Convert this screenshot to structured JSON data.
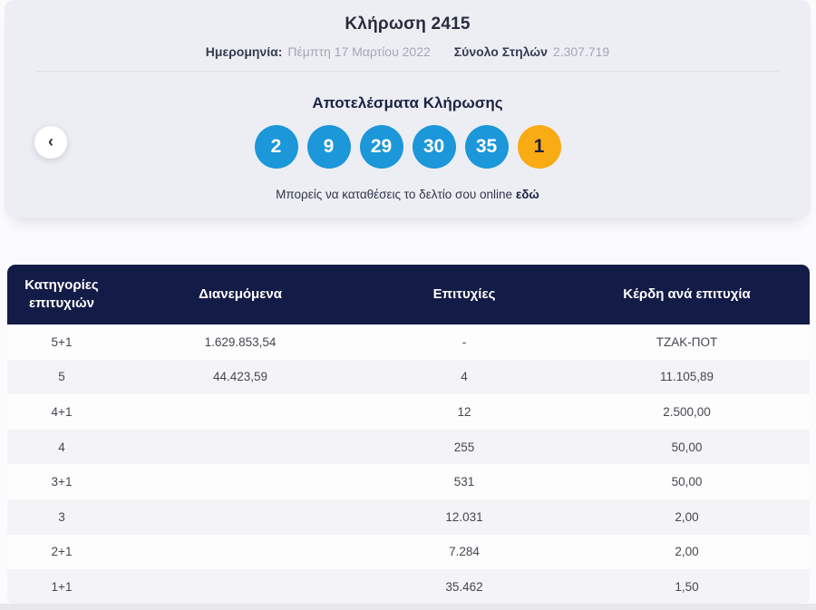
{
  "draw_card": {
    "title": "Κλήρωση 2415",
    "date_label": "Ημερομηνία:",
    "date_value": "Πέμπτη 17 Μαρτίου 2022",
    "columns_label": "Σύνολο Στηλών",
    "columns_value": "2.307.719",
    "results_heading": "Αποτελέσματα Κλήρωσης",
    "numbers": [
      "2",
      "9",
      "29",
      "30",
      "35"
    ],
    "bonus_number": "1",
    "online_text": "Μπορείς να καταθέσεις το δελτίο σου online",
    "online_link_label": "εδώ"
  },
  "nav": {
    "prev_icon": "‹"
  },
  "results_table": {
    "headers": [
      "Κατηγορίες επιτυχιών",
      "Διανεμόμενα",
      "Επιτυχίες",
      "Κέρδη ανά επιτυχία"
    ],
    "rows": [
      {
        "category": "5+1",
        "distributed": "1.629.853,54",
        "winners": "-",
        "winnings": "ΤΖΑΚ-ΠΟΤ"
      },
      {
        "category": "5",
        "distributed": "44.423,59",
        "winners": "4",
        "winnings": "11.105,89"
      },
      {
        "category": "4+1",
        "distributed": "",
        "winners": "12",
        "winnings": "2.500,00"
      },
      {
        "category": "4",
        "distributed": "",
        "winners": "255",
        "winnings": "50,00"
      },
      {
        "category": "3+1",
        "distributed": "",
        "winners": "531",
        "winnings": "50,00"
      },
      {
        "category": "3",
        "distributed": "",
        "winners": "12.031",
        "winnings": "2,00"
      },
      {
        "category": "2+1",
        "distributed": "",
        "winners": "7.284",
        "winnings": "2,00"
      },
      {
        "category": "1+1",
        "distributed": "",
        "winners": "35.462",
        "winnings": "1,50"
      }
    ]
  },
  "colors": {
    "ball_blue": "#1b97da",
    "ball_orange": "#f9ab14",
    "header_navy": "#131b47",
    "card_bg": "#edeef4",
    "page_bg": "#fbfbfd"
  }
}
